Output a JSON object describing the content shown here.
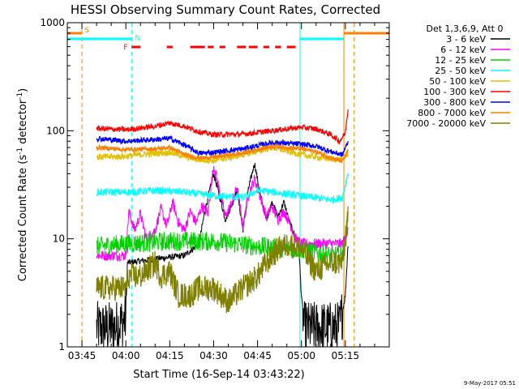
{
  "chart_data": {
    "type": "line",
    "title": "HESSI Observing Summary Count Rates, Corrected",
    "xlabel": "Start Time (16-Sep-14 03:43:22)",
    "ylabel": "Corrected Count Rate (s⁻¹ detector⁻¹)",
    "ylabel_main": "Corrected Count Rate (s",
    "ylabel_sup1": "-1",
    "ylabel_mid": " detector",
    "ylabel_sup2": "-1",
    "ylabel_end": ")",
    "yscale": "log",
    "ylim": [
      1,
      1000
    ],
    "xlim_minutes": [
      220,
      330
    ],
    "x_ticks": [
      {
        "label": "03:45",
        "minutes": 225
      },
      {
        "label": "04:00",
        "minutes": 240
      },
      {
        "label": "04:15",
        "minutes": 255
      },
      {
        "label": "04:30",
        "minutes": 270
      },
      {
        "label": "04:45",
        "minutes": 285
      },
      {
        "label": "05:00",
        "minutes": 300
      },
      {
        "label": "05:15",
        "minutes": 315
      }
    ],
    "y_ticks": [
      {
        "label": "1",
        "value": 1
      },
      {
        "label": "10",
        "value": 10
      },
      {
        "label": "100",
        "value": 100
      },
      {
        "label": "1000",
        "value": 1000
      }
    ],
    "legend_title": "Det 1,3,6,9, Att 0",
    "legend_position": "right",
    "date_stamp": "9-May-2017 05:51",
    "data_window_minutes": [
      230,
      316
    ],
    "series": [
      {
        "name": "3 - 6 keV",
        "color": "#000000",
        "points": [
          [
            230,
            1.5
          ],
          [
            236,
            1.5
          ],
          [
            240,
            1.8
          ],
          [
            240.5,
            6
          ],
          [
            250,
            6.5
          ],
          [
            260,
            7
          ],
          [
            265,
            9
          ],
          [
            267,
            18
          ],
          [
            270,
            40
          ],
          [
            272,
            25
          ],
          [
            274,
            15
          ],
          [
            276,
            20
          ],
          [
            278,
            28
          ],
          [
            280,
            12
          ],
          [
            282,
            30
          ],
          [
            284,
            50
          ],
          [
            286,
            25
          ],
          [
            288,
            15
          ],
          [
            290,
            22
          ],
          [
            292,
            16
          ],
          [
            294,
            22
          ],
          [
            296,
            14
          ],
          [
            299,
            9
          ],
          [
            300,
            3
          ],
          [
            301,
            1.5
          ],
          [
            313,
            1.5
          ],
          [
            315,
            3
          ],
          [
            316,
            10
          ]
        ]
      },
      {
        "name": "6 - 12 keV",
        "color": "#ff00ff",
        "points": [
          [
            230,
            7
          ],
          [
            240,
            7
          ],
          [
            241,
            18
          ],
          [
            243,
            12
          ],
          [
            245,
            17
          ],
          [
            247,
            10
          ],
          [
            250,
            12
          ],
          [
            252,
            19
          ],
          [
            254,
            13
          ],
          [
            256,
            22
          ],
          [
            258,
            14
          ],
          [
            260,
            12
          ],
          [
            262,
            18
          ],
          [
            264,
            14
          ],
          [
            266,
            20
          ],
          [
            268,
            17
          ],
          [
            270,
            48
          ],
          [
            272,
            28
          ],
          [
            274,
            16
          ],
          [
            276,
            21
          ],
          [
            278,
            30
          ],
          [
            280,
            13
          ],
          [
            282,
            26
          ],
          [
            284,
            36
          ],
          [
            286,
            24
          ],
          [
            288,
            16
          ],
          [
            290,
            20
          ],
          [
            292,
            15
          ],
          [
            294,
            18
          ],
          [
            296,
            14
          ],
          [
            298,
            10
          ],
          [
            300,
            9
          ],
          [
            314,
            9
          ],
          [
            316,
            12
          ]
        ]
      },
      {
        "name": "12 - 25 keV",
        "color": "#00d000",
        "points": [
          [
            230,
            8.5
          ],
          [
            240,
            9
          ],
          [
            255,
            9.5
          ],
          [
            270,
            9.5
          ],
          [
            285,
            8.5
          ],
          [
            300,
            8
          ],
          [
            310,
            7
          ],
          [
            314,
            7
          ],
          [
            316,
            16
          ]
        ]
      },
      {
        "name": "25 - 50 keV",
        "color": "#00ffff",
        "points": [
          [
            230,
            27
          ],
          [
            240,
            27
          ],
          [
            250,
            28
          ],
          [
            260,
            27
          ],
          [
            270,
            25
          ],
          [
            280,
            24
          ],
          [
            285,
            28
          ],
          [
            290,
            27
          ],
          [
            300,
            25
          ],
          [
            310,
            23
          ],
          [
            314,
            24
          ],
          [
            316,
            42
          ]
        ]
      },
      {
        "name": "50 - 100 keV",
        "color": "#e0c000",
        "points": [
          [
            230,
            57
          ],
          [
            240,
            58
          ],
          [
            250,
            62
          ],
          [
            255,
            63
          ],
          [
            260,
            58
          ],
          [
            265,
            54
          ],
          [
            270,
            53
          ],
          [
            280,
            60
          ],
          [
            290,
            70
          ],
          [
            295,
            65
          ],
          [
            300,
            60
          ],
          [
            305,
            57
          ],
          [
            310,
            55
          ],
          [
            314,
            54
          ],
          [
            316,
            62
          ]
        ]
      },
      {
        "name": "100 - 300 keV",
        "color": "#ff0000",
        "points": [
          [
            230,
            105
          ],
          [
            240,
            102
          ],
          [
            250,
            110
          ],
          [
            255,
            118
          ],
          [
            260,
            110
          ],
          [
            265,
            98
          ],
          [
            270,
            92
          ],
          [
            280,
            93
          ],
          [
            290,
            100
          ],
          [
            300,
            108
          ],
          [
            305,
            104
          ],
          [
            310,
            92
          ],
          [
            313,
            80
          ],
          [
            315,
            95
          ],
          [
            316,
            170
          ]
        ]
      },
      {
        "name": "300 - 800 keV",
        "color": "#0000ff",
        "points": [
          [
            230,
            85
          ],
          [
            240,
            80
          ],
          [
            250,
            83
          ],
          [
            255,
            85
          ],
          [
            260,
            74
          ],
          [
            265,
            62
          ],
          [
            270,
            63
          ],
          [
            280,
            68
          ],
          [
            290,
            78
          ],
          [
            300,
            75
          ],
          [
            305,
            72
          ],
          [
            310,
            64
          ],
          [
            314,
            60
          ],
          [
            316,
            80
          ]
        ]
      },
      {
        "name": "800 - 7000 keV",
        "color": "#ff8000",
        "points": [
          [
            230,
            70
          ],
          [
            240,
            67
          ],
          [
            250,
            68
          ],
          [
            255,
            70
          ],
          [
            260,
            60
          ],
          [
            265,
            56
          ],
          [
            270,
            57
          ],
          [
            280,
            62
          ],
          [
            290,
            72
          ],
          [
            300,
            68
          ],
          [
            305,
            64
          ],
          [
            310,
            56
          ],
          [
            314,
            52
          ],
          [
            316,
            66
          ]
        ]
      },
      {
        "name": "7000 - 20000 keV",
        "color": "#808000",
        "points": [
          [
            230,
            3.5
          ],
          [
            240,
            3.5
          ],
          [
            241,
            4.5
          ],
          [
            245,
            4.5
          ],
          [
            250,
            6
          ],
          [
            252,
            4.5
          ],
          [
            255,
            5
          ],
          [
            258,
            3
          ],
          [
            262,
            3
          ],
          [
            265,
            3.5
          ],
          [
            270,
            3.5
          ],
          [
            275,
            2.6
          ],
          [
            280,
            3.5
          ],
          [
            285,
            4.5
          ],
          [
            288,
            6
          ],
          [
            292,
            8
          ],
          [
            296,
            9
          ],
          [
            300,
            8
          ],
          [
            305,
            5
          ],
          [
            310,
            6
          ],
          [
            314,
            6
          ],
          [
            316,
            16
          ]
        ]
      }
    ],
    "annotations": {
      "saa_label": "S",
      "night_label": "N",
      "flare_label": "F",
      "saa_marker_color": "#ff8000",
      "night_marker_color": "#00ffff",
      "flare_marker_color": "#ff0000",
      "saa_boundaries_minutes": [
        225,
        314.5,
        318
      ],
      "night_boundaries_minutes": [
        242,
        299.5
      ],
      "saa_bars": [
        [
          220,
          225
        ],
        [
          314.5,
          330
        ]
      ],
      "night_bars": [
        [
          220,
          242
        ],
        [
          299.5,
          314.5
        ]
      ],
      "flare_segments": [
        [
          242,
          245
        ],
        [
          254,
          256
        ],
        [
          262,
          267
        ],
        [
          268,
          270
        ],
        [
          272,
          274
        ],
        [
          278,
          281
        ],
        [
          282,
          285
        ],
        [
          287,
          289
        ],
        [
          291,
          293
        ],
        [
          295,
          298
        ]
      ]
    }
  }
}
